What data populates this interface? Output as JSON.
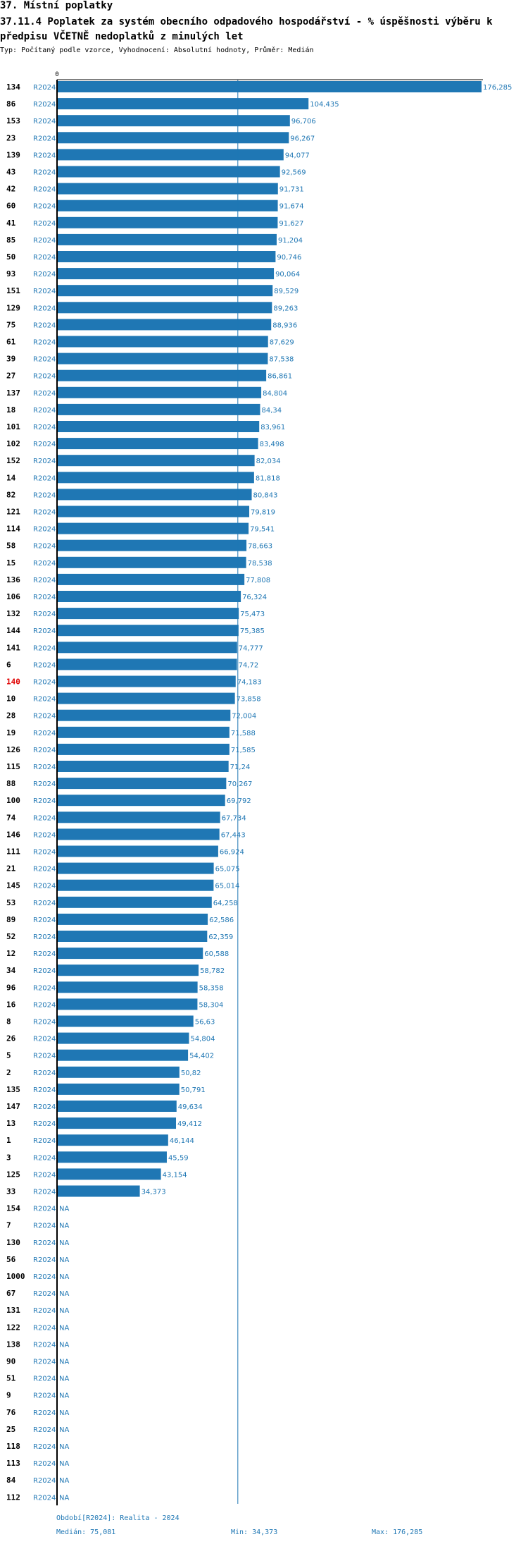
{
  "header": {
    "title": "37. Místní poplatky",
    "subtitle": "37.11.4 Poplatek za systém obecního odpadového hospodářství  - % úspěšnosti výběru k předpisu VČETNĚ nedoplatků z minulých let",
    "meta": "Typ: Počítaný podle vzorce, Vyhodnocení: Absolutní hodnoty, Průměr: Medián"
  },
  "colors": {
    "bar": "#1f77b4",
    "text_blue": "#1f77b4",
    "highlight": "#e00000",
    "axis": "#000000"
  },
  "chart_data": {
    "type": "bar",
    "orientation": "horizontal",
    "axis_zero_label": "0",
    "xlim": [
      0,
      176.285
    ],
    "median": 75.081,
    "period_label": "R2024",
    "na_label": "NA",
    "highlight_id": "140",
    "rows": [
      {
        "id": "134",
        "value": 176.285,
        "label": "176,285"
      },
      {
        "id": "86",
        "value": 104.435,
        "label": "104,435"
      },
      {
        "id": "153",
        "value": 96.706,
        "label": "96,706"
      },
      {
        "id": "23",
        "value": 96.267,
        "label": "96,267"
      },
      {
        "id": "139",
        "value": 94.077,
        "label": "94,077"
      },
      {
        "id": "43",
        "value": 92.569,
        "label": "92,569"
      },
      {
        "id": "42",
        "value": 91.731,
        "label": "91,731"
      },
      {
        "id": "60",
        "value": 91.674,
        "label": "91,674"
      },
      {
        "id": "41",
        "value": 91.627,
        "label": "91,627"
      },
      {
        "id": "85",
        "value": 91.204,
        "label": "91,204"
      },
      {
        "id": "50",
        "value": 90.746,
        "label": "90,746"
      },
      {
        "id": "93",
        "value": 90.064,
        "label": "90,064"
      },
      {
        "id": "151",
        "value": 89.529,
        "label": "89,529"
      },
      {
        "id": "129",
        "value": 89.263,
        "label": "89,263"
      },
      {
        "id": "75",
        "value": 88.936,
        "label": "88,936"
      },
      {
        "id": "61",
        "value": 87.629,
        "label": "87,629"
      },
      {
        "id": "39",
        "value": 87.538,
        "label": "87,538"
      },
      {
        "id": "27",
        "value": 86.861,
        "label": "86,861"
      },
      {
        "id": "137",
        "value": 84.804,
        "label": "84,804"
      },
      {
        "id": "18",
        "value": 84.34,
        "label": "84,34"
      },
      {
        "id": "101",
        "value": 83.961,
        "label": "83,961"
      },
      {
        "id": "102",
        "value": 83.498,
        "label": "83,498"
      },
      {
        "id": "152",
        "value": 82.034,
        "label": "82,034"
      },
      {
        "id": "14",
        "value": 81.818,
        "label": "81,818"
      },
      {
        "id": "82",
        "value": 80.843,
        "label": "80,843"
      },
      {
        "id": "121",
        "value": 79.819,
        "label": "79,819"
      },
      {
        "id": "114",
        "value": 79.541,
        "label": "79,541"
      },
      {
        "id": "58",
        "value": 78.663,
        "label": "78,663"
      },
      {
        "id": "15",
        "value": 78.538,
        "label": "78,538"
      },
      {
        "id": "136",
        "value": 77.808,
        "label": "77,808"
      },
      {
        "id": "106",
        "value": 76.324,
        "label": "76,324"
      },
      {
        "id": "132",
        "value": 75.473,
        "label": "75,473"
      },
      {
        "id": "144",
        "value": 75.385,
        "label": "75,385"
      },
      {
        "id": "141",
        "value": 74.777,
        "label": "74,777"
      },
      {
        "id": "6",
        "value": 74.72,
        "label": "74,72"
      },
      {
        "id": "140",
        "value": 74.183,
        "label": "74,183"
      },
      {
        "id": "10",
        "value": 73.858,
        "label": "73,858"
      },
      {
        "id": "28",
        "value": 72.004,
        "label": "72,004"
      },
      {
        "id": "19",
        "value": 71.588,
        "label": "71,588"
      },
      {
        "id": "126",
        "value": 71.585,
        "label": "71,585"
      },
      {
        "id": "115",
        "value": 71.24,
        "label": "71,24"
      },
      {
        "id": "88",
        "value": 70.267,
        "label": "70,267"
      },
      {
        "id": "100",
        "value": 69.792,
        "label": "69,792"
      },
      {
        "id": "74",
        "value": 67.734,
        "label": "67,734"
      },
      {
        "id": "146",
        "value": 67.443,
        "label": "67,443"
      },
      {
        "id": "111",
        "value": 66.924,
        "label": "66,924"
      },
      {
        "id": "21",
        "value": 65.075,
        "label": "65,075"
      },
      {
        "id": "145",
        "value": 65.014,
        "label": "65,014"
      },
      {
        "id": "53",
        "value": 64.258,
        "label": "64,258"
      },
      {
        "id": "89",
        "value": 62.586,
        "label": "62,586"
      },
      {
        "id": "52",
        "value": 62.359,
        "label": "62,359"
      },
      {
        "id": "12",
        "value": 60.588,
        "label": "60,588"
      },
      {
        "id": "34",
        "value": 58.782,
        "label": "58,782"
      },
      {
        "id": "96",
        "value": 58.358,
        "label": "58,358"
      },
      {
        "id": "16",
        "value": 58.304,
        "label": "58,304"
      },
      {
        "id": "8",
        "value": 56.63,
        "label": "56,63"
      },
      {
        "id": "26",
        "value": 54.804,
        "label": "54,804"
      },
      {
        "id": "5",
        "value": 54.402,
        "label": "54,402"
      },
      {
        "id": "2",
        "value": 50.82,
        "label": "50,82"
      },
      {
        "id": "135",
        "value": 50.791,
        "label": "50,791"
      },
      {
        "id": "147",
        "value": 49.634,
        "label": "49,634"
      },
      {
        "id": "13",
        "value": 49.412,
        "label": "49,412"
      },
      {
        "id": "1",
        "value": 46.144,
        "label": "46,144"
      },
      {
        "id": "3",
        "value": 45.59,
        "label": "45,59"
      },
      {
        "id": "125",
        "value": 43.154,
        "label": "43,154"
      },
      {
        "id": "33",
        "value": 34.373,
        "label": "34,373"
      },
      {
        "id": "154",
        "value": null,
        "label": "NA"
      },
      {
        "id": "7",
        "value": null,
        "label": "NA"
      },
      {
        "id": "130",
        "value": null,
        "label": "NA"
      },
      {
        "id": "56",
        "value": null,
        "label": "NA"
      },
      {
        "id": "1000",
        "value": null,
        "label": "NA"
      },
      {
        "id": "67",
        "value": null,
        "label": "NA"
      },
      {
        "id": "131",
        "value": null,
        "label": "NA"
      },
      {
        "id": "122",
        "value": null,
        "label": "NA"
      },
      {
        "id": "138",
        "value": null,
        "label": "NA"
      },
      {
        "id": "90",
        "value": null,
        "label": "NA"
      },
      {
        "id": "51",
        "value": null,
        "label": "NA"
      },
      {
        "id": "9",
        "value": null,
        "label": "NA"
      },
      {
        "id": "76",
        "value": null,
        "label": "NA"
      },
      {
        "id": "25",
        "value": null,
        "label": "NA"
      },
      {
        "id": "118",
        "value": null,
        "label": "NA"
      },
      {
        "id": "113",
        "value": null,
        "label": "NA"
      },
      {
        "id": "84",
        "value": null,
        "label": "NA"
      },
      {
        "id": "112",
        "value": null,
        "label": "NA"
      }
    ]
  },
  "footer": {
    "period": "Období[R2024]: Realita - 2024",
    "median": "Medián: 75,081",
    "min": "Min: 34,373",
    "max": "Max: 176,285"
  }
}
